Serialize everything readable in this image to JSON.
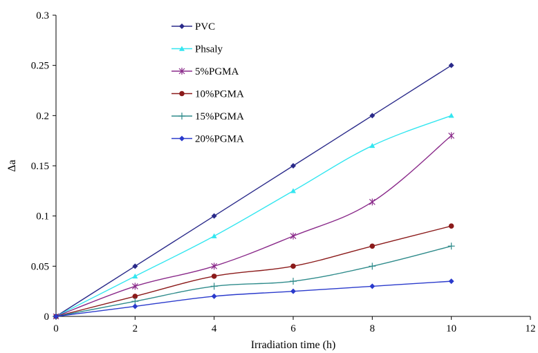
{
  "chart_data": {
    "type": "line",
    "xlabel": "Irradiation time (h)",
    "ylabel": "Δa",
    "xlim": [
      0,
      12
    ],
    "ylim": [
      0,
      0.3
    ],
    "x_ticks": [
      "0",
      "2",
      "4",
      "6",
      "8",
      "10",
      "12"
    ],
    "y_ticks": [
      "0",
      "0.05",
      "0.1",
      "0.15",
      "0.2",
      "0.25",
      "0.3"
    ],
    "grid": false,
    "legend_position": "top-left",
    "x": [
      0,
      2,
      4,
      6,
      8,
      10
    ],
    "series": [
      {
        "name": "PVC",
        "values": [
          0,
          0.05,
          0.1,
          0.15,
          0.2,
          0.25
        ],
        "color": "#2a2a8a",
        "marker": "diamond"
      },
      {
        "name": "Phsaly",
        "values": [
          0,
          0.04,
          0.08,
          0.125,
          0.17,
          0.2
        ],
        "color": "#33e6f0",
        "marker": "triangle"
      },
      {
        "name": "5%PGMA",
        "values": [
          0,
          0.03,
          0.05,
          0.08,
          0.114,
          0.18
        ],
        "color": "#8a2a8a",
        "marker": "asterisk"
      },
      {
        "name": "10%PGMA",
        "values": [
          0,
          0.02,
          0.04,
          0.05,
          0.07,
          0.09
        ],
        "color": "#8b1a1a",
        "marker": "circle"
      },
      {
        "name": "15%PGMA",
        "values": [
          0,
          0.015,
          0.03,
          0.035,
          0.05,
          0.07
        ],
        "color": "#2e8b8b",
        "marker": "plus"
      },
      {
        "name": "20%PGMA",
        "values": [
          0,
          0.01,
          0.02,
          0.025,
          0.03,
          0.035
        ],
        "color": "#2a3acc",
        "marker": "diamond"
      }
    ]
  }
}
